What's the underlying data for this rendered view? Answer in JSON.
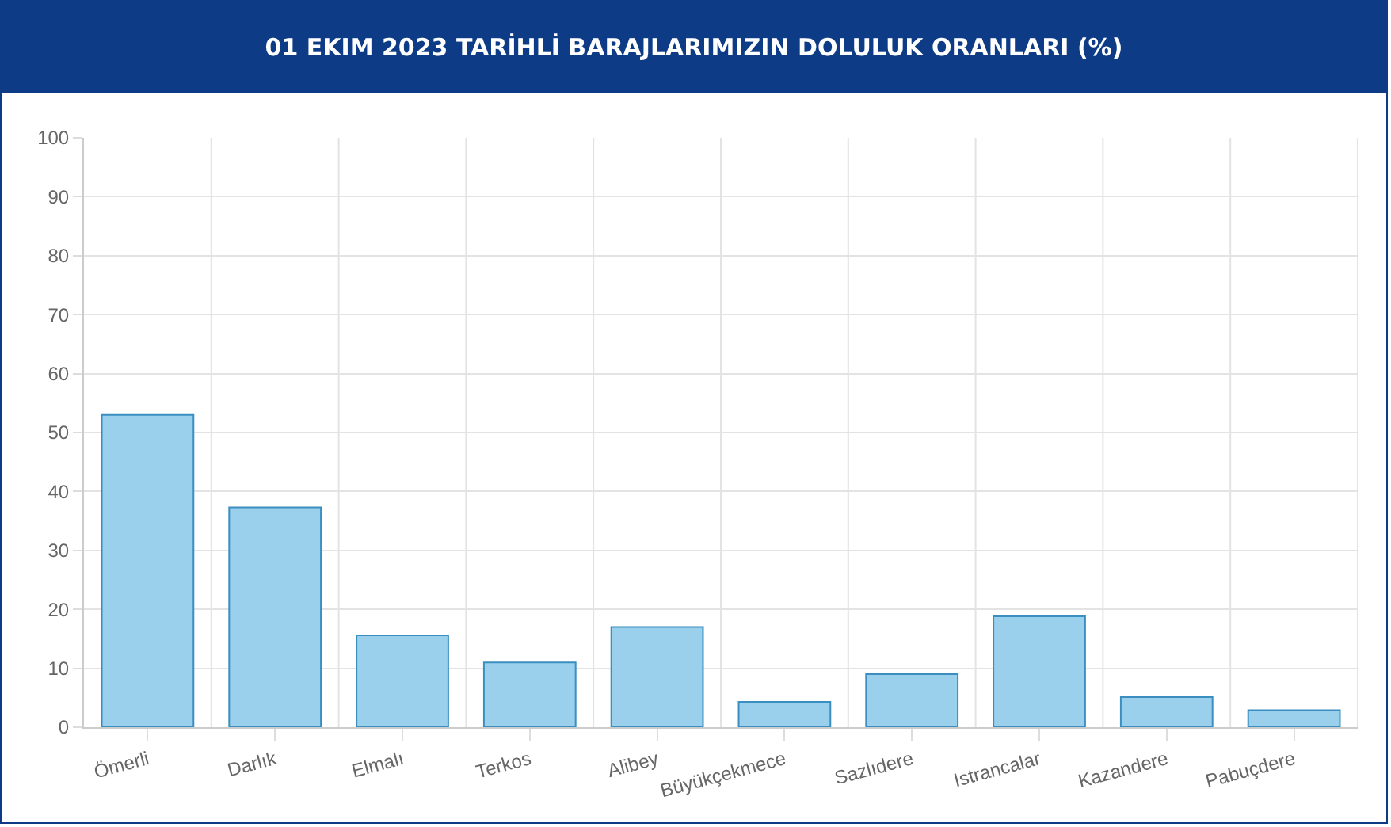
{
  "chart_data": {
    "type": "bar",
    "title": "01 EKIM 2023 TARİHLİ BARAJLARIMIZIN DOLULUK ORANLARI (%)",
    "categories": [
      "Ömerli",
      "Darlık",
      "Elmalı",
      "Terkos",
      "Alibey",
      "Büyükçekmece",
      "Sazlıdere",
      "Istrancalar",
      "Kazandere",
      "Pabuçdere"
    ],
    "values": [
      53.0,
      37.3,
      15.6,
      11.0,
      17.0,
      4.3,
      9.0,
      18.8,
      5.1,
      2.9
    ],
    "color": "#9bd0ec",
    "ylim": [
      0,
      100
    ],
    "yticks": [
      0,
      10,
      20,
      30,
      40,
      50,
      60,
      70,
      80,
      90,
      100
    ],
    "grid": true
  }
}
